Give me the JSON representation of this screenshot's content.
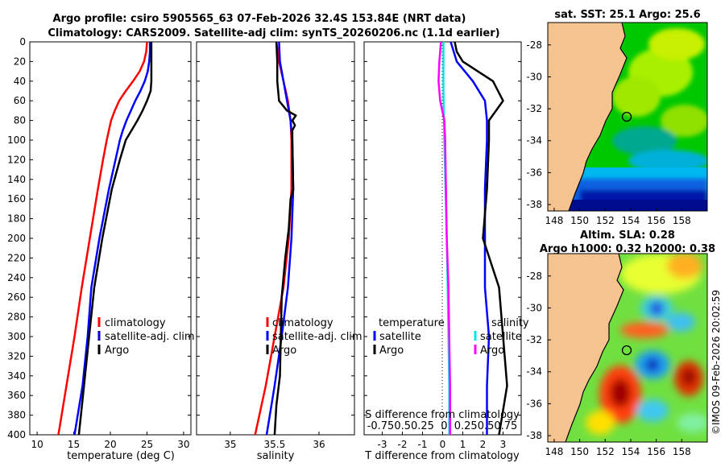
{
  "titles": {
    "line1": "Argo profile: csiro 5905565_63 07-Feb-2026 32.4S 153.84E (NRT data)",
    "line2": "Climatology: CARS2009. Satellite-adj clim: synTS_20260206.nc (1.1d earlier)",
    "sst_map": "sat. SST: 25.1 Argo: 25.6",
    "sla_map_1": "Altim. SLA: 0.28",
    "sla_map_2": "Argo h1000: 0.32 h2000: 0.38",
    "credit": "©IMOS 09-Feb-2026 20:02:59"
  },
  "chart_data": [
    {
      "type": "line",
      "name": "temperature-profile",
      "xlabel": "temperature (deg C)",
      "ylabel": "",
      "xlim": [
        9,
        31
      ],
      "ylim": [
        400,
        0
      ],
      "xticks": [
        "10",
        "15",
        "20",
        "25",
        "30"
      ],
      "yticks": [
        "0",
        "20",
        "40",
        "60",
        "80",
        "100",
        "120",
        "140",
        "160",
        "180",
        "200",
        "220",
        "240",
        "260",
        "280",
        "300",
        "320",
        "340",
        "360",
        "380",
        "400"
      ],
      "legend": [
        "climatology",
        "satellite-adj. clim",
        "Argo"
      ],
      "series": [
        {
          "name": "climatology",
          "color": "#ff0000",
          "depth": [
            0,
            10,
            20,
            30,
            40,
            50,
            60,
            70,
            80,
            90,
            100,
            120,
            150,
            200,
            250,
            300,
            350,
            400
          ],
          "values": [
            25.0,
            24.9,
            24.6,
            24.0,
            23.1,
            22.1,
            21.2,
            20.6,
            20.1,
            19.8,
            19.5,
            19.0,
            18.3,
            17.2,
            16.1,
            15.1,
            14.0,
            12.9
          ]
        },
        {
          "name": "satellite-adj. clim",
          "color": "#0000ff",
          "depth": [
            0,
            10,
            20,
            30,
            40,
            50,
            60,
            70,
            80,
            90,
            100,
            120,
            150,
            200,
            250,
            300,
            350,
            400
          ],
          "values": [
            25.4,
            25.4,
            25.3,
            25.1,
            24.7,
            24.1,
            23.4,
            22.8,
            22.2,
            21.7,
            21.3,
            20.7,
            19.8,
            18.5,
            17.4,
            16.9,
            16.2,
            15.1
          ]
        },
        {
          "name": "Argo",
          "color": "#000000",
          "depth": [
            0,
            10,
            20,
            30,
            40,
            50,
            60,
            70,
            80,
            90,
            100,
            120,
            150,
            200,
            250,
            300,
            350,
            400
          ],
          "values": [
            25.6,
            25.6,
            25.6,
            25.6,
            25.6,
            25.5,
            25.0,
            24.4,
            23.7,
            22.9,
            22.1,
            21.3,
            20.2,
            18.9,
            17.8,
            17.1,
            16.4,
            15.7
          ]
        }
      ]
    },
    {
      "type": "line",
      "name": "salinity-profile",
      "xlabel": "salinity",
      "ylabel": "",
      "xlim": [
        34.62,
        36.4
      ],
      "ylim": [
        400,
        0
      ],
      "xticks": [
        "35",
        "35.5",
        "36"
      ],
      "legend": [
        "climatology",
        "satellite-adj. clim",
        "Argo"
      ],
      "series": [
        {
          "name": "climatology",
          "color": "#ff0000",
          "depth": [
            0,
            20,
            40,
            60,
            80,
            100,
            150,
            200,
            250,
            300,
            350,
            400
          ],
          "values": [
            35.52,
            35.55,
            35.6,
            35.65,
            35.68,
            35.69,
            35.69,
            35.66,
            35.6,
            35.5,
            35.4,
            35.28
          ]
        },
        {
          "name": "satellite-adj. clim",
          "color": "#0000ff",
          "depth": [
            0,
            20,
            40,
            60,
            80,
            100,
            150,
            200,
            250,
            300,
            350,
            400
          ],
          "values": [
            35.55,
            35.56,
            35.6,
            35.64,
            35.68,
            35.7,
            35.71,
            35.69,
            35.65,
            35.58,
            35.5,
            35.41
          ]
        },
        {
          "name": "Argo",
          "color": "#000000",
          "depth": [
            0,
            20,
            40,
            60,
            70,
            75,
            80,
            85,
            90,
            100,
            150,
            160,
            190,
            220,
            260,
            300,
            340,
            370,
            400
          ],
          "values": [
            35.52,
            35.53,
            35.53,
            35.55,
            35.64,
            35.74,
            35.7,
            35.73,
            35.7,
            35.7,
            35.71,
            35.68,
            35.66,
            35.62,
            35.58,
            35.57,
            35.56,
            35.52,
            35.5
          ]
        }
      ]
    },
    {
      "type": "line",
      "name": "difference-profile",
      "xlabel": "T difference from climatology",
      "ylabel": "",
      "xlim": [
        -3.9,
        3.9
      ],
      "ylim": [
        400,
        0
      ],
      "xticks": [
        "-3",
        "-2",
        "-1",
        "0",
        "1",
        "2",
        "3"
      ],
      "s_axis_label": "S difference from climatology",
      "s_axis_ticks": "-0.750.50.25  0  0.250.50.75",
      "legend_temperature_title": "temperature",
      "legend_salinity_title": "salinity",
      "legend": [
        "satellite",
        "Argo",
        "satellite",
        "Argo"
      ],
      "series": [
        {
          "name": "temperature satellite",
          "color": "#0000ff",
          "depth": [
            0,
            20,
            40,
            60,
            80,
            100,
            150,
            200,
            250,
            300,
            350,
            400
          ],
          "values": [
            0.4,
            0.7,
            1.5,
            2.1,
            2.2,
            2.2,
            2.1,
            2.1,
            2.1,
            2.3,
            2.2,
            2.2
          ]
        },
        {
          "name": "temperature Argo",
          "color": "#000000",
          "depth": [
            0,
            10,
            20,
            40,
            60,
            80,
            100,
            150,
            200,
            250,
            300,
            350,
            400
          ],
          "values": [
            0.6,
            0.7,
            1.0,
            2.5,
            3.0,
            2.3,
            2.3,
            2.2,
            2.0,
            2.8,
            3.0,
            3.2,
            2.8
          ]
        },
        {
          "name": "salinity satellite",
          "color": "#00e5e5",
          "depth": [
            0,
            50,
            100,
            200,
            250,
            300,
            350,
            400
          ],
          "values": [
            0.01,
            0.01,
            0.02,
            0.05,
            0.06,
            0.07,
            0.08,
            0.08
          ]
        },
        {
          "name": "salinity Argo",
          "color": "#ff00ff",
          "depth": [
            0,
            20,
            40,
            60,
            80,
            100,
            200,
            250,
            300,
            350,
            400
          ],
          "values": [
            -0.02,
            -0.04,
            -0.05,
            -0.03,
            0.02,
            0.03,
            0.05,
            0.07,
            0.08,
            0.09,
            0.09
          ]
        }
      ]
    },
    {
      "type": "heatmap",
      "name": "sst-map",
      "title": "sat. SST: 25.1 Argo: 25.6",
      "xlim": [
        147.5,
        160.0
      ],
      "ylim": [
        -38.4,
        -26.6
      ],
      "xticks": [
        "148",
        "150",
        "152",
        "154",
        "156",
        "158"
      ],
      "yticks": [
        "-28",
        "-30",
        "-32",
        "-34",
        "-36",
        "-38"
      ],
      "argo_position": [
        153.84,
        -32.4
      ]
    },
    {
      "type": "heatmap",
      "name": "sla-map",
      "title": "Altim. SLA: 0.28",
      "xlim": [
        147.5,
        160.0
      ],
      "ylim": [
        -38.4,
        -26.6
      ],
      "xticks": [
        "148",
        "150",
        "152",
        "154",
        "156",
        "158"
      ],
      "yticks": [
        "-28",
        "-30",
        "-32",
        "-34",
        "-36",
        "-38"
      ],
      "argo_position": [
        153.84,
        -32.4
      ]
    }
  ]
}
